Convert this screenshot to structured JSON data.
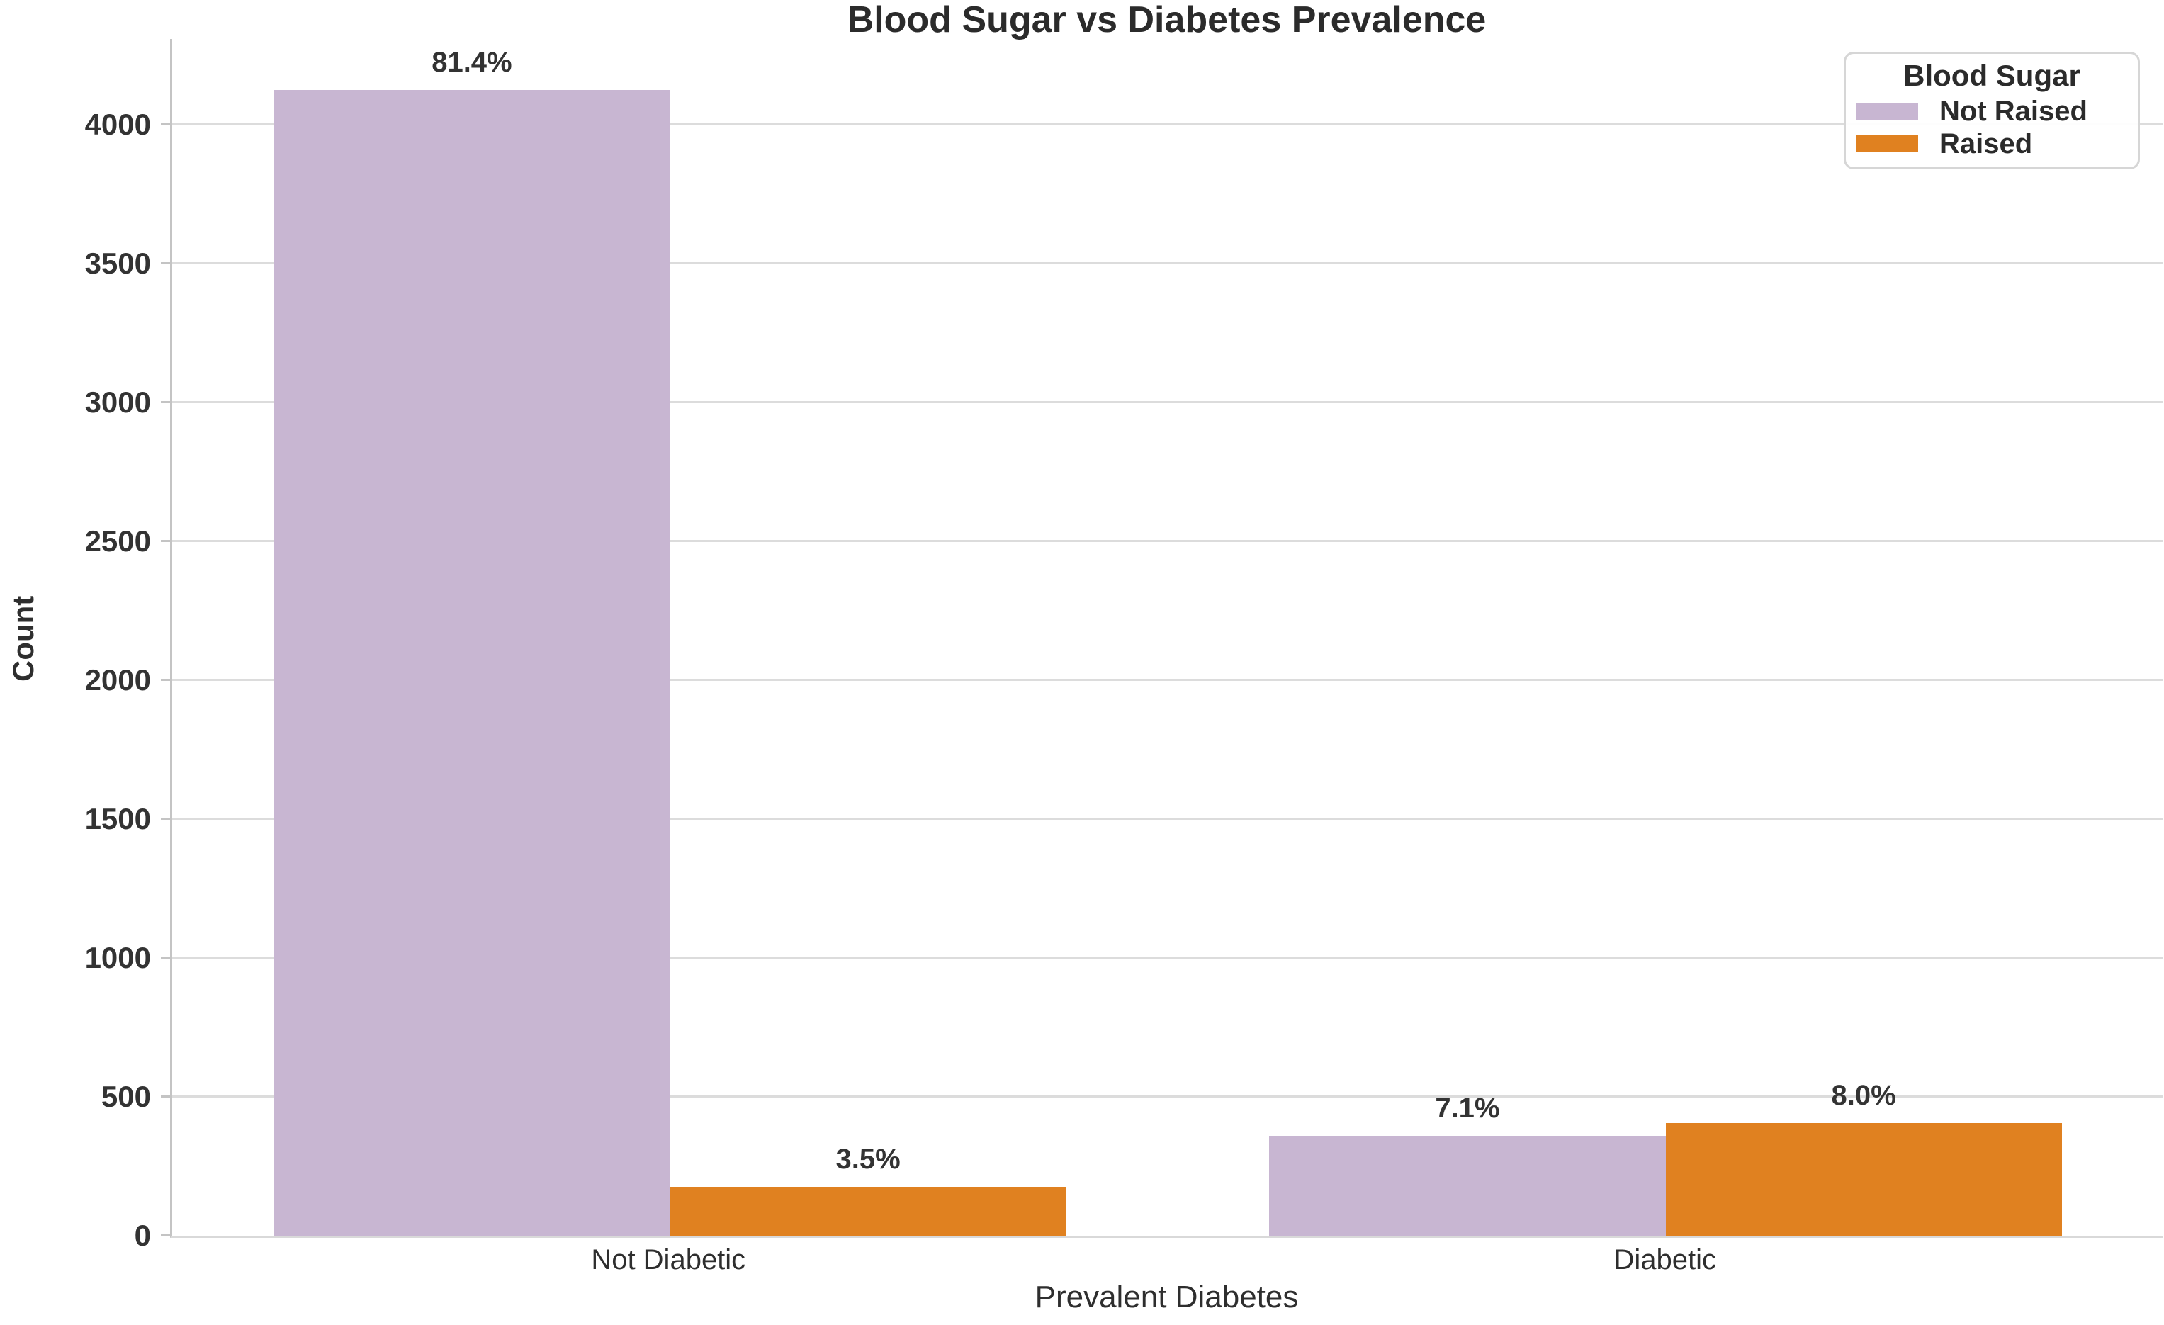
{
  "chart_data": {
    "type": "bar",
    "title": "Blood Sugar vs Diabetes Prevalence",
    "xlabel": "Prevalent Diabetes",
    "ylabel": "Count",
    "categories": [
      "Not Diabetic",
      "Diabetic"
    ],
    "series": [
      {
        "name": "Not Raised",
        "color": "#c8b6d2",
        "values": [
          4127,
          360
        ],
        "bar_labels": [
          "81.4%",
          "7.1%"
        ]
      },
      {
        "name": "Raised",
        "color": "#e08120",
        "values": [
          177,
          406
        ],
        "bar_labels": [
          "3.5%",
          "8.0%"
        ]
      }
    ],
    "legend": {
      "title": "Blood Sugar",
      "position": "upper-right",
      "entries": [
        "Not Raised",
        "Raised"
      ]
    },
    "ylim": [
      0,
      4310
    ],
    "yticks": [
      0,
      500,
      1000,
      1500,
      2000,
      2500,
      3000,
      3500,
      4000
    ],
    "grid": true
  },
  "colors": {
    "not_raised": "#c8b6d2",
    "raised": "#e08120",
    "gridline": "#dcdcdc",
    "axis_spine": "#c4c4c4",
    "text": "#2e2e2e",
    "background": "#ffffff"
  }
}
